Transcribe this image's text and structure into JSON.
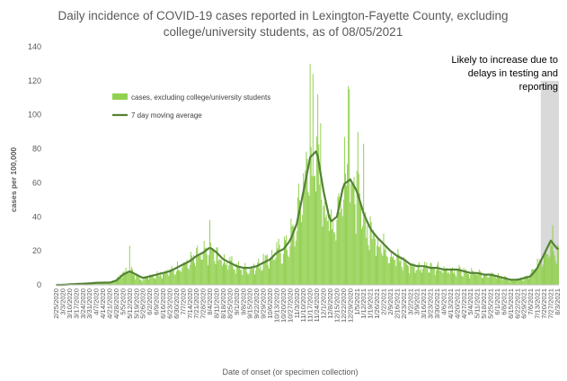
{
  "chart_data": {
    "type": "bar",
    "title_lines": [
      "Daily incidence of COVID-19 cases reported in Lexington-Fayette County, excluding",
      "college/university students, as of 08/05/2021"
    ],
    "xlabel": "Date of onset (or specimen collection)",
    "ylabel": "cases per 100,000",
    "ylim": [
      0,
      140
    ],
    "yticks": [
      0,
      20,
      40,
      60,
      80,
      100,
      120,
      140
    ],
    "x_start_date": "2020-02-25",
    "x_end_date": "2021-08-04",
    "xtick_labels": [
      "2/25/2020",
      "3/3/2020",
      "3/10/2020",
      "3/17/2020",
      "3/24/2020",
      "3/31/2020",
      "4/7/2020",
      "4/14/2020",
      "4/21/2020",
      "4/28/2020",
      "5/5/2020",
      "5/12/2020",
      "5/19/2020",
      "5/26/2020",
      "6/2/2020",
      "6/9/2020",
      "6/16/2020",
      "6/23/2020",
      "6/30/2020",
      "7/7/2020",
      "7/14/2020",
      "7/21/2020",
      "7/28/2020",
      "8/4/2020",
      "8/11/2020",
      "8/18/2020",
      "8/25/2020",
      "9/1/2020",
      "9/8/2020",
      "9/15/2020",
      "9/22/2020",
      "9/29/2020",
      "10/6/2020",
      "10/13/2020",
      "10/20/2020",
      "10/27/2020",
      "11/3/2020",
      "11/10/2020",
      "11/17/2020",
      "11/24/2020",
      "12/1/2020",
      "12/8/2020",
      "12/15/2020",
      "12/22/2020",
      "12/29/2020",
      "1/5/2021",
      "1/12/2021",
      "1/19/2021",
      "1/26/2021",
      "2/2/2021",
      "2/9/2021",
      "2/16/2021",
      "2/23/2021",
      "3/2/2021",
      "3/9/2021",
      "3/16/2021",
      "3/23/2021",
      "3/30/2021",
      "4/6/2021",
      "4/13/2021",
      "4/20/2021",
      "4/27/2021",
      "5/4/2021",
      "5/11/2021",
      "5/18/2021",
      "5/25/2021",
      "6/1/2021",
      "6/8/2021",
      "6/15/2021",
      "6/22/2021",
      "6/29/2021",
      "7/6/2021",
      "7/13/2021",
      "7/20/2021",
      "7/27/2021",
      "8/3/2021"
    ],
    "series": [
      {
        "name": "cases, excluding college/university students",
        "kind": "bar",
        "color": "#92D050",
        "weekly_mean": [
          0,
          0,
          0.5,
          0.8,
          0.8,
          1,
          1.5,
          1.5,
          1.2,
          3,
          7,
          10,
          5,
          3,
          6,
          6,
          7,
          8,
          10,
          12,
          14,
          17,
          18,
          21,
          18,
          15,
          13,
          11,
          10,
          10,
          11,
          14,
          16,
          20,
          22,
          27,
          38,
          62,
          78,
          70,
          52,
          38,
          43,
          62,
          60,
          52,
          40,
          32,
          28,
          24,
          20,
          16,
          14,
          12,
          11,
          11,
          10,
          10,
          9,
          9,
          9,
          8,
          7,
          7,
          6,
          6,
          5,
          4,
          3,
          3,
          4,
          6,
          12,
          20,
          26,
          22
        ],
        "notable_days": [
          {
            "date": "2020-11-17",
            "value": 130
          },
          {
            "date": "2020-11-20",
            "value": 124
          },
          {
            "date": "2020-11-25",
            "value": 112
          },
          {
            "date": "2020-11-28",
            "value": 95
          },
          {
            "date": "2020-12-27",
            "value": 117
          },
          {
            "date": "2020-12-28",
            "value": 115
          },
          {
            "date": "2021-01-06",
            "value": 90
          },
          {
            "date": "2021-01-12",
            "value": 83
          },
          {
            "date": "2020-08-04",
            "value": 38
          },
          {
            "date": "2020-05-12",
            "value": 23
          },
          {
            "date": "2021-07-29",
            "value": 35
          }
        ]
      },
      {
        "name": "7 day moving average",
        "kind": "line",
        "color": "#548235",
        "weekly_mean": [
          0,
          0,
          0.3,
          0.5,
          0.7,
          0.9,
          1.2,
          1.3,
          1.3,
          2.5,
          6,
          8,
          6,
          4,
          5,
          6,
          7,
          8,
          10,
          12,
          14,
          17,
          19,
          22,
          19,
          15,
          13,
          11,
          10,
          10,
          11,
          13,
          15,
          19,
          21,
          26,
          36,
          55,
          75,
          79,
          55,
          37,
          40,
          59,
          62,
          55,
          42,
          33,
          28,
          24,
          20,
          17,
          15,
          12,
          11,
          11,
          10,
          10,
          9,
          9,
          9,
          8,
          7,
          7,
          6,
          6,
          5,
          4,
          3,
          3,
          4,
          5,
          10,
          18,
          26,
          21
        ]
      }
    ],
    "annotation": {
      "lines": [
        "Likely to increase due to",
        "delays in testing and",
        "reporting"
      ],
      "shaded_from": "2021-07-17",
      "shaded_to": "2021-08-04",
      "shade_color": "#D9D9D9"
    },
    "legend_position": "upper-left",
    "grid": false
  }
}
